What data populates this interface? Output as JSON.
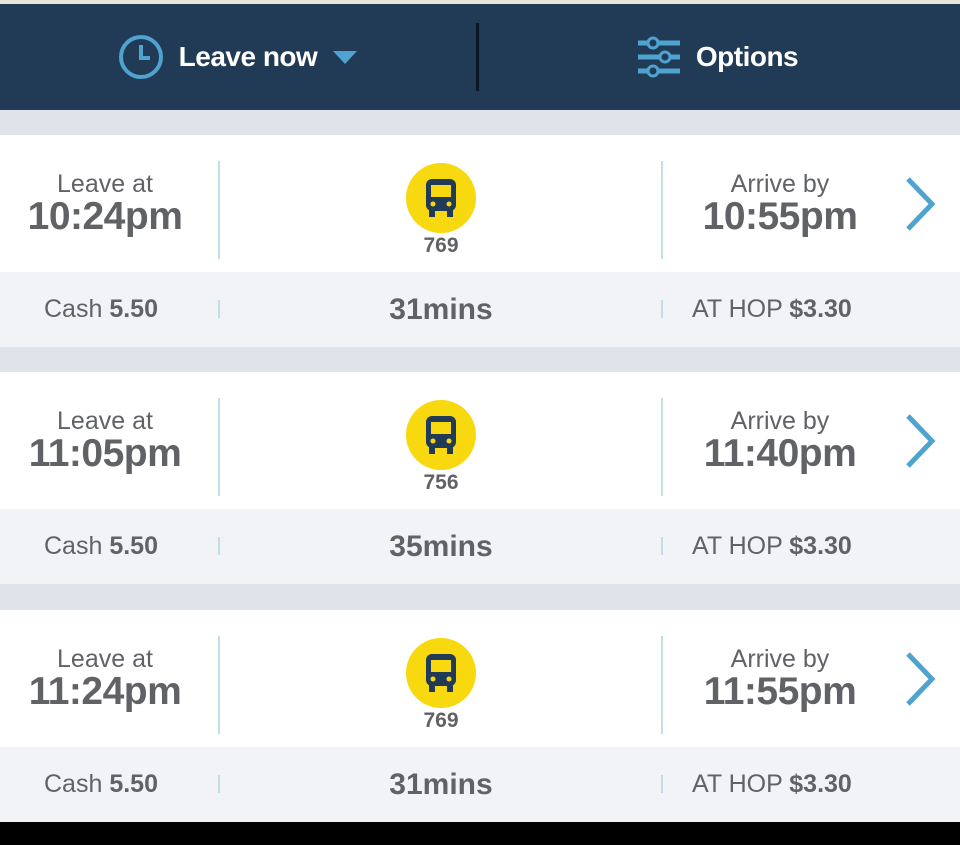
{
  "header": {
    "leave_label": "Leave now",
    "options_label": "Options",
    "accent": "#4fa3cf",
    "background": "#213b56"
  },
  "trips": [
    {
      "leave_label": "Leave at",
      "leave_time": "10:24pm",
      "route": "769",
      "arrive_label": "Arrive by",
      "arrive_time": "10:55pm",
      "cash_label": "Cash",
      "cash_price": "5.50",
      "duration": "31mins",
      "hop_label": "AT HOP",
      "hop_price": "$3.30"
    },
    {
      "leave_label": "Leave at",
      "leave_time": "11:05pm",
      "route": "756",
      "arrive_label": "Arrive by",
      "arrive_time": "11:40pm",
      "cash_label": "Cash",
      "cash_price": "5.50",
      "duration": "35mins",
      "hop_label": "AT HOP",
      "hop_price": "$3.30"
    },
    {
      "leave_label": "Leave at",
      "leave_time": "11:24pm",
      "route": "769",
      "arrive_label": "Arrive by",
      "arrive_time": "11:55pm",
      "cash_label": "Cash",
      "cash_price": "5.50",
      "duration": "31mins",
      "hop_label": "AT HOP",
      "hop_price": "$3.30"
    }
  ]
}
